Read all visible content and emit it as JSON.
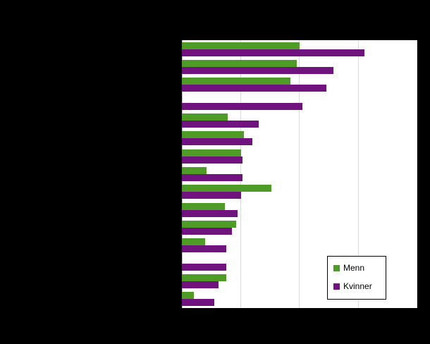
{
  "chart_data": {
    "type": "bar",
    "orientation": "horizontal",
    "title": "",
    "xlabel": "",
    "ylabel": "",
    "grid": true,
    "x_tick_labels_visible": false,
    "y_tick_labels_visible": false,
    "xlim": [
      0,
      8
    ],
    "gridline_interval": 2,
    "legend_position": "inside-bottom-right",
    "categories": [
      "",
      "",
      "",
      "",
      "",
      "",
      "",
      "",
      "",
      "",
      "",
      "",
      "",
      "",
      ""
    ],
    "series": [
      {
        "name": "Menn",
        "color": "#4e9c27",
        "values": [
          4.0,
          3.9,
          3.7,
          0,
          1.55,
          2.1,
          2.0,
          0.85,
          3.05,
          1.45,
          1.85,
          0.8,
          0,
          1.5,
          0.4
        ]
      },
      {
        "name": "Kvinner",
        "color": "#70137e",
        "values": [
          6.2,
          5.15,
          4.9,
          4.1,
          2.6,
          2.4,
          2.05,
          2.05,
          2.0,
          1.9,
          1.7,
          1.5,
          1.5,
          1.25,
          1.1
        ]
      }
    ]
  },
  "legend": {
    "items": [
      {
        "label": "Menn"
      },
      {
        "label": "Kvinner"
      }
    ]
  },
  "colors": {
    "page_background": "#000000",
    "plot_background": "#ffffff",
    "gridline": "#d9d9d9",
    "menn": "#4e9c27",
    "kvinner": "#70137e"
  }
}
